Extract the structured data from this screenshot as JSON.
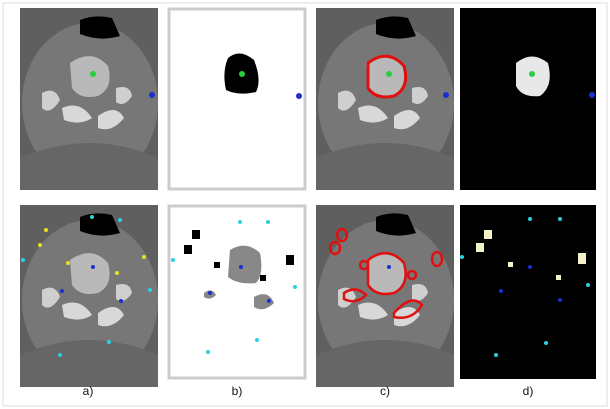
{
  "labels": [
    "a)",
    "b)",
    "c)",
    "d)"
  ]
}
